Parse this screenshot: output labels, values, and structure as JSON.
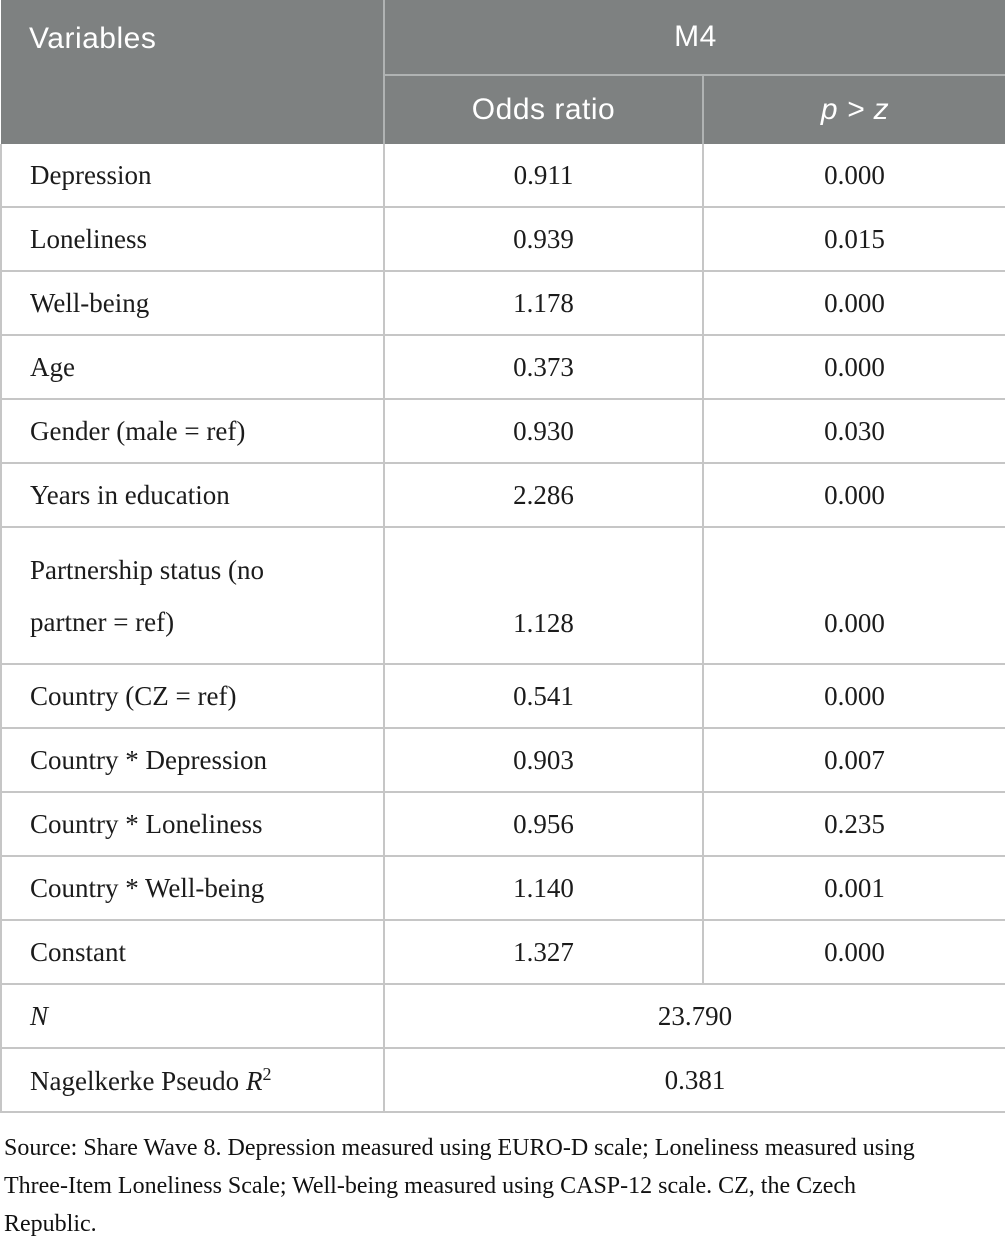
{
  "table": {
    "header": {
      "variables_label": "Variables",
      "model_label": "M4",
      "odds_ratio_label": "Odds ratio",
      "p_label": "p > z"
    },
    "rows": [
      {
        "label": "Depression",
        "odds_ratio": "0.911",
        "p": "0.000"
      },
      {
        "label": "Loneliness",
        "odds_ratio": "0.939",
        "p": "0.015"
      },
      {
        "label": "Well-being",
        "odds_ratio": "1.178",
        "p": "0.000"
      },
      {
        "label": "Age",
        "odds_ratio": "0.373",
        "p": "0.000"
      },
      {
        "label": "Gender (male = ref)",
        "odds_ratio": "0.930",
        "p": "0.030"
      },
      {
        "label": "Years in education",
        "odds_ratio": "2.286",
        "p": "0.000"
      },
      {
        "label": "Partnership status (no partner = ref)",
        "odds_ratio": "1.128",
        "p": "0.000"
      },
      {
        "label": "Country (CZ = ref)",
        "odds_ratio": "0.541",
        "p": "0.000"
      },
      {
        "label": "Country * Depression",
        "odds_ratio": "0.903",
        "p": "0.007"
      },
      {
        "label": "Country * Loneliness",
        "odds_ratio": "0.956",
        "p": "0.235"
      },
      {
        "label": "Country * Well-being",
        "odds_ratio": "1.140",
        "p": "0.001"
      },
      {
        "label": "Constant",
        "odds_ratio": "1.327",
        "p": "0.000"
      }
    ],
    "summary": {
      "n_label": "N",
      "n_value": "23.790",
      "pseudo_r2_prefix": "Nagelkerke Pseudo ",
      "pseudo_r2_symbol": "R",
      "pseudo_r2_sup": "2",
      "pseudo_r2_value": "0.381"
    }
  },
  "footnote": "Source: Share Wave 8. Depression measured using EURO-D scale; Loneliness measured using Three-Item Loneliness Scale; Well-being measured using CASP-12 scale. CZ, the Czech Republic.",
  "colors": {
    "header_bg": "#7e8181",
    "header_text": "#ffffff",
    "header_divider": "#b0b3b3",
    "body_border": "#c6c6c6",
    "body_text": "#1b1b1b"
  }
}
